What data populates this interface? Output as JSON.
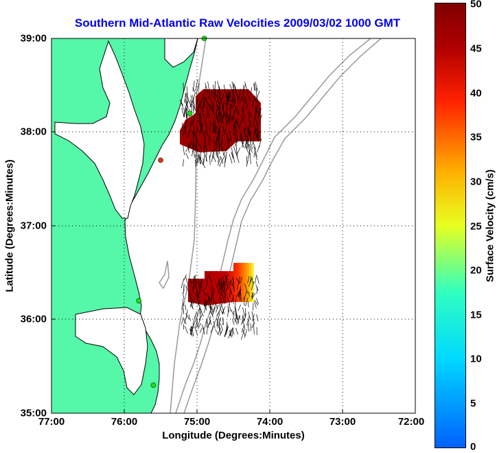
{
  "title": "Southern Mid-Atlantic Raw Velocities 2009/03/02 1000 GMT",
  "xlabel": "Longitude (Degrees:Minutes)",
  "ylabel": "Latitude (Degrees:Minutes)",
  "x_ticks": [
    "77:00",
    "76:00",
    "75:00",
    "74:00",
    "73:00",
    "72:00"
  ],
  "y_ticks": [
    "39:00",
    "38:00",
    "37:00",
    "36:00",
    "35:00"
  ],
  "colorbar": {
    "label": "Surface Velocity (cm/s)",
    "ticks": [
      "50",
      "45",
      "40",
      "35",
      "30",
      "25",
      "20",
      "15",
      "10",
      "5",
      "0"
    ]
  },
  "colors": {
    "land": "#55f7a8",
    "coast": "#000000",
    "bathymetry": "#999999",
    "vectors": "#000000",
    "title": "#0000ee"
  },
  "chart_data": {
    "type": "map",
    "xlim": [
      -77,
      -72
    ],
    "ylim": [
      35,
      39
    ],
    "colormap_range": [
      0,
      50
    ],
    "grid": true,
    "stations": [
      {
        "lon": -74.9,
        "lat": 39.0
      },
      {
        "lon": -75.1,
        "lat": 38.2
      },
      {
        "lon": -75.5,
        "lat": 37.7
      },
      {
        "lon": -75.8,
        "lat": 36.2
      },
      {
        "lon": -75.6,
        "lat": 35.3
      }
    ]
  }
}
